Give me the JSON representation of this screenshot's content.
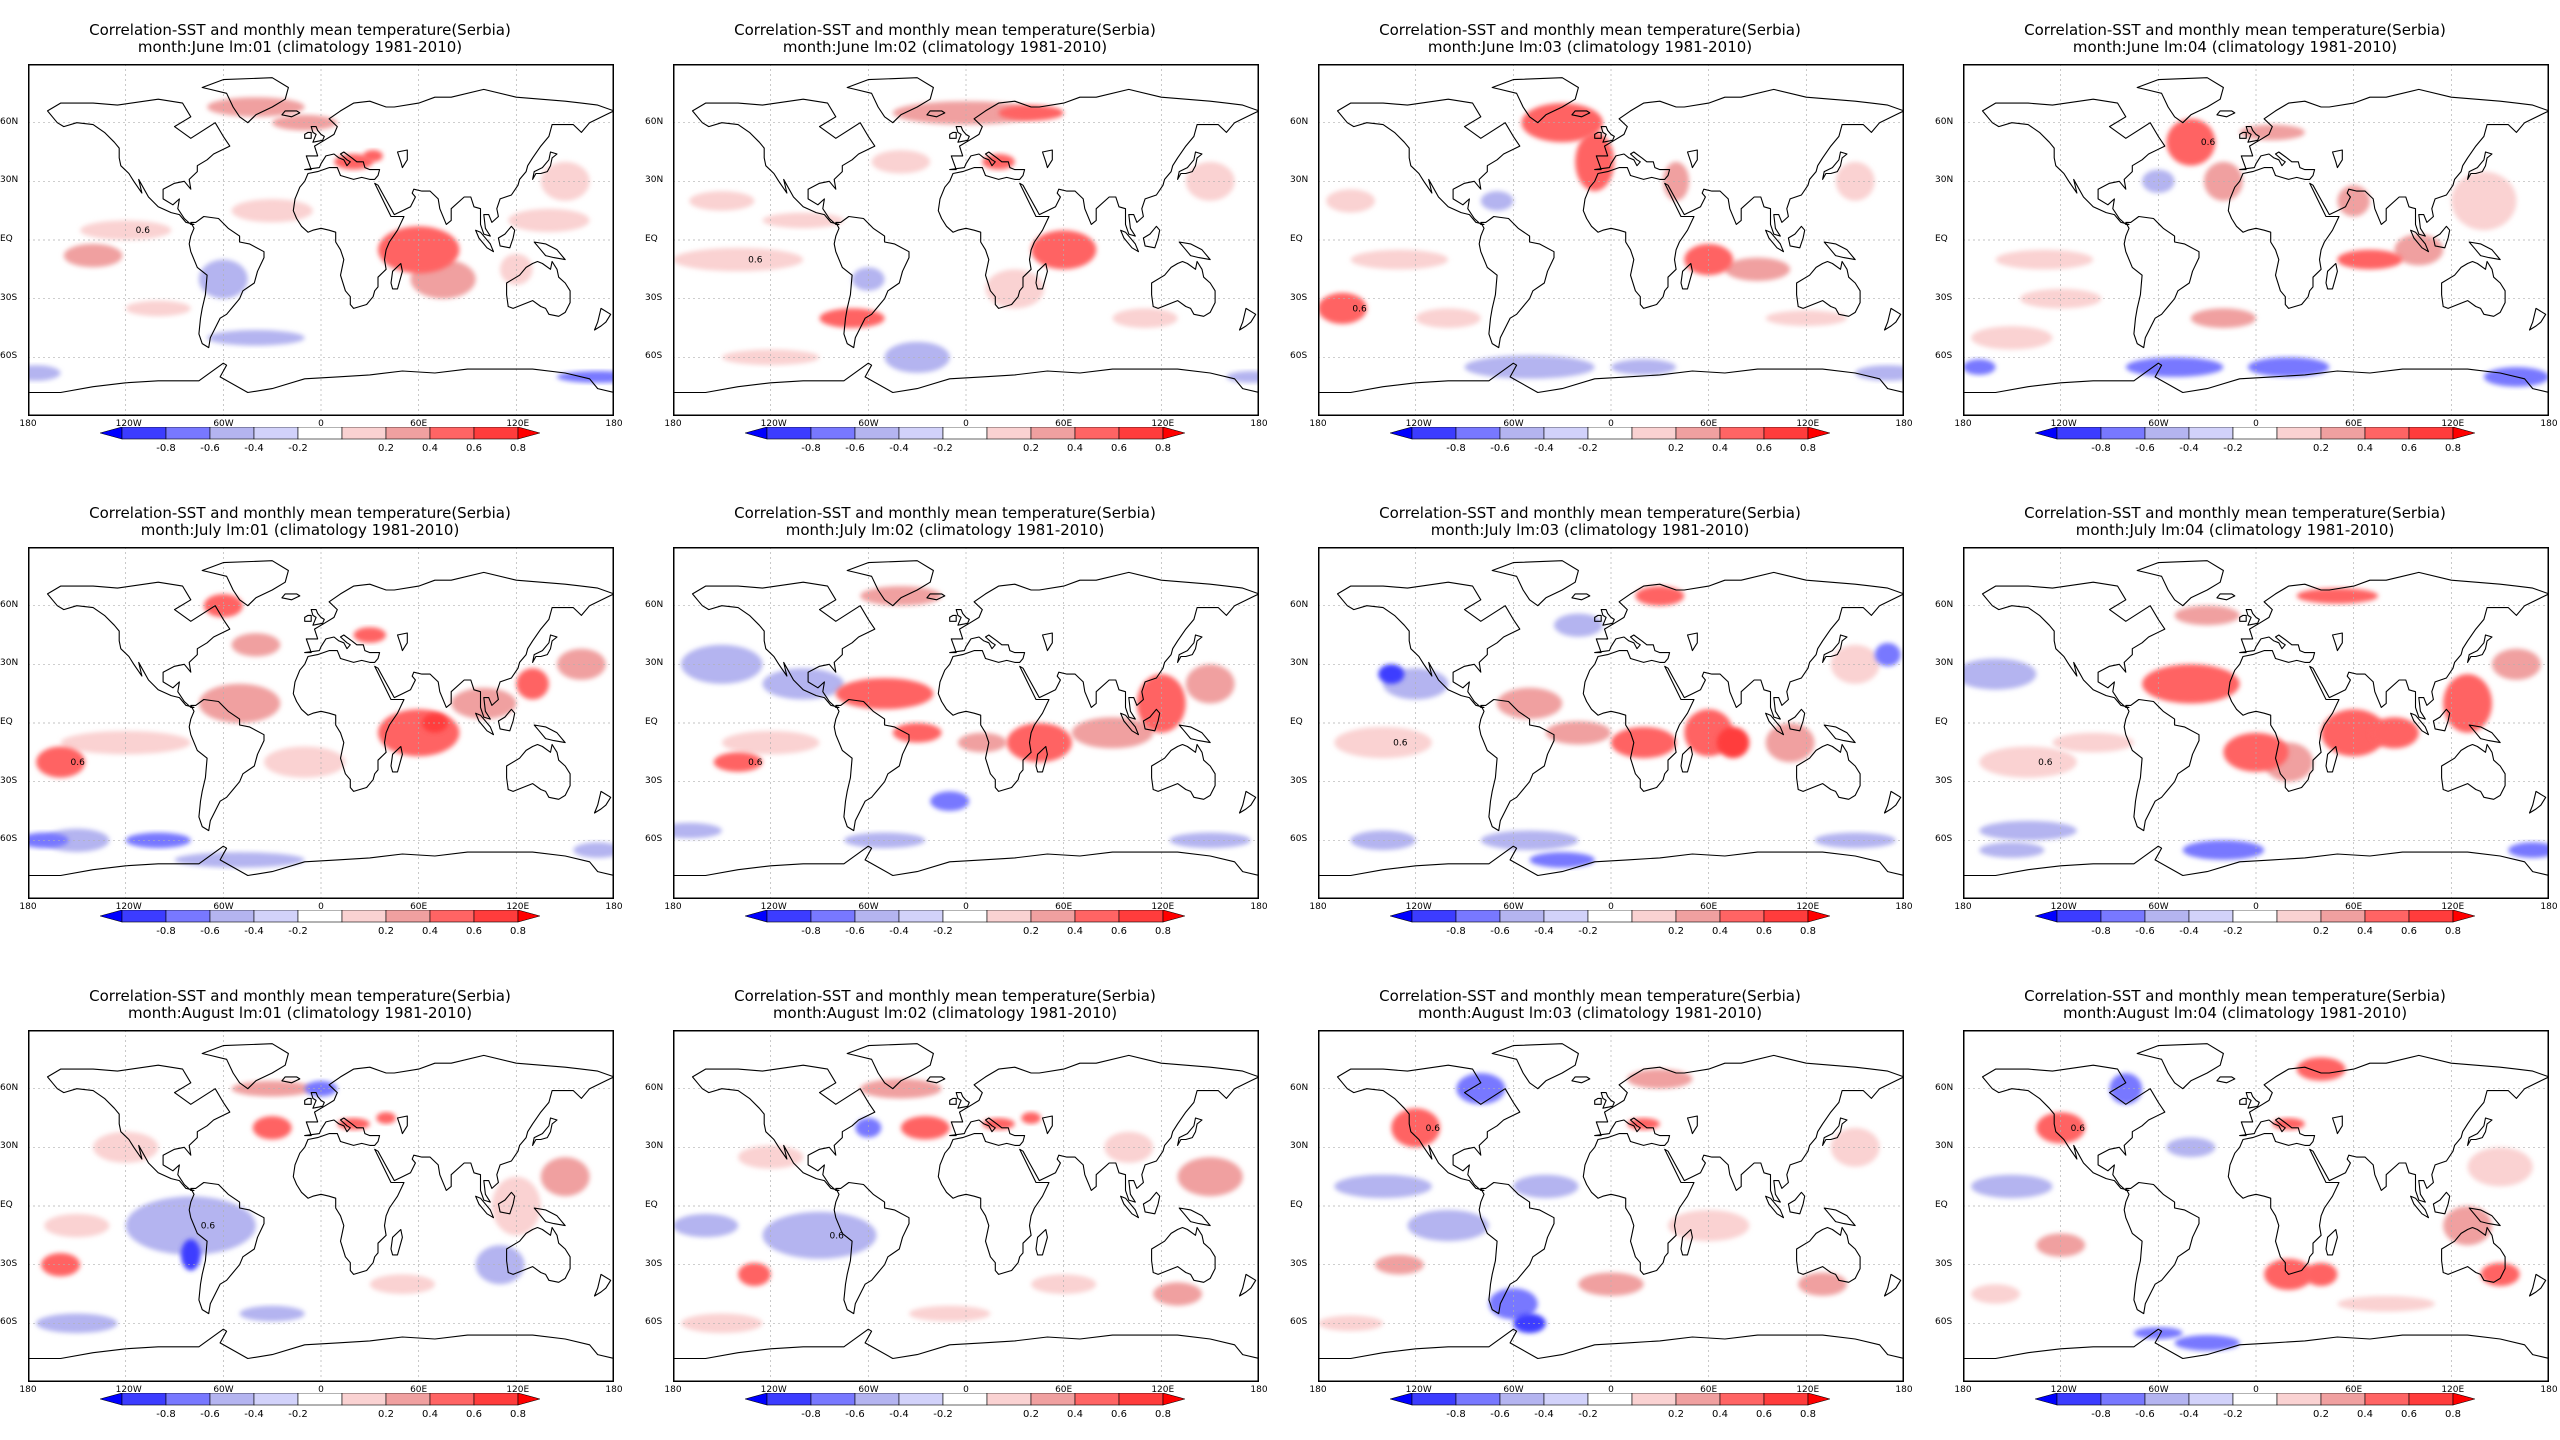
{
  "figure": {
    "panels": [
      {
        "title": "Correlation-SST and monthly mean temperature(Serbia)",
        "subtitle": "month:June lm:01 (climatology 1981-2010)"
      },
      {
        "title": "Correlation-SST and monthly mean temperature(Serbia)",
        "subtitle": "month:June lm:02 (climatology 1981-2010)"
      },
      {
        "title": "Correlation-SST and monthly mean temperature(Serbia)",
        "subtitle": "month:June lm:03 (climatology 1981-2010)"
      },
      {
        "title": "Correlation-SST and monthly mean temperature(Serbia)",
        "subtitle": "month:June lm:04 (climatology 1981-2010)"
      },
      {
        "title": "Correlation-SST and monthly mean temperature(Serbia)",
        "subtitle": "month:July lm:01 (climatology 1981-2010)"
      },
      {
        "title": "Correlation-SST and monthly mean temperature(Serbia)",
        "subtitle": "month:July lm:02 (climatology 1981-2010)"
      },
      {
        "title": "Correlation-SST and monthly mean temperature(Serbia)",
        "subtitle": "month:July lm:03 (climatology 1981-2010)"
      },
      {
        "title": "Correlation-SST and monthly mean temperature(Serbia)",
        "subtitle": "month:July lm:04 (climatology 1981-2010)"
      },
      {
        "title": "Correlation-SST and monthly mean temperature(Serbia)",
        "subtitle": "month:August lm:01 (climatology 1981-2010)"
      },
      {
        "title": "Correlation-SST and monthly mean temperature(Serbia)",
        "subtitle": "month:August lm:02 (climatology 1981-2010)"
      },
      {
        "title": "Correlation-SST and monthly mean temperature(Serbia)",
        "subtitle": "month:August lm:03 (climatology 1981-2010)"
      },
      {
        "title": "Correlation-SST and monthly mean temperature(Serbia)",
        "subtitle": "month:August lm:04 (climatology 1981-2010)"
      }
    ],
    "x_ticks": [
      "180",
      "120W",
      "60W",
      "0",
      "60E",
      "120E",
      "180"
    ],
    "y_ticks": [
      "60N",
      "30N",
      "EQ",
      "30S",
      "60S"
    ],
    "colorbar": {
      "labels": [
        "-0.8",
        "-0.6",
        "-0.4",
        "-0.2",
        "0.2",
        "0.4",
        "0.6",
        "0.8"
      ],
      "colors": [
        "#0000ff",
        "#3c3cff",
        "#7878ff",
        "#b4b4f0",
        "#d2d2fa",
        "#ffffff",
        "#fad2d2",
        "#f0a0a0",
        "#ff6464",
        "#ff3c3c",
        "#ff0000"
      ]
    },
    "contour_label": "0.6"
  }
}
